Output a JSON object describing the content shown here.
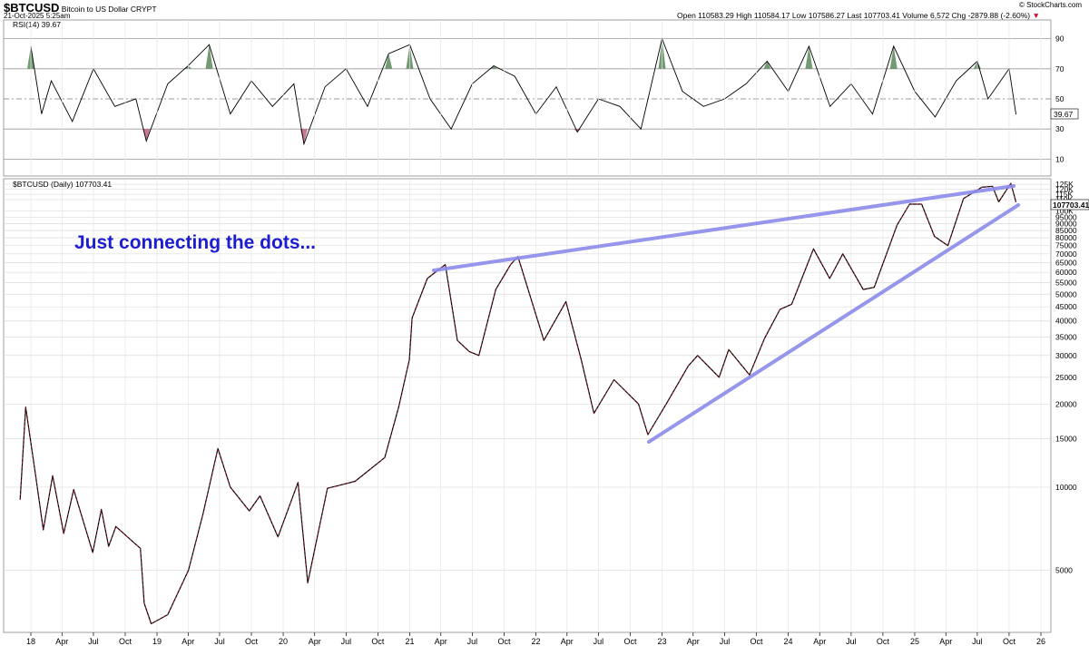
{
  "header": {
    "symbol": "$BTCUSD",
    "name": "Bitcoin to US Dollar",
    "exchange": "CRYPT",
    "datetime": "21-Oct-2025 5:25am",
    "source": "© StockCharts.com",
    "quote": "Open 110583.29  High 110584.17  Low 107586.27  Last 107703.41  Volume 6,572  Chg -2879.88 (-2.60%)",
    "chg_arrow": "▼"
  },
  "rsi_panel": {
    "label": "RSI(14) 39.67",
    "last_label": "39.67",
    "levels": [
      "90",
      "70",
      "50",
      "30",
      "10"
    ]
  },
  "price_panel": {
    "label": "$BTCUSD (Daily) 107703.41",
    "last_label": "107703.41",
    "y_ticks": [
      "125K",
      "120K",
      "115K",
      "110K",
      "100K",
      "95000",
      "90000",
      "85000",
      "80000",
      "75000",
      "70000",
      "65000",
      "60000",
      "55000",
      "50000",
      "45000",
      "40000",
      "35000",
      "30000",
      "25000",
      "20000",
      "15000",
      "10000",
      "5000"
    ]
  },
  "annotation": "Just connecting the dots...",
  "x_ticks": [
    "18",
    "Apr",
    "Jul",
    "Oct",
    "19",
    "Apr",
    "Jul",
    "Oct",
    "20",
    "Apr",
    "Jul",
    "Oct",
    "21",
    "Apr",
    "Jul",
    "Oct",
    "22",
    "Apr",
    "Jul",
    "Oct",
    "23",
    "Apr",
    "Jul",
    "Oct",
    "24",
    "Apr",
    "Jul",
    "Oct",
    "25",
    "Apr",
    "Jul",
    "Oct",
    "26"
  ],
  "colors": {
    "trendline": "#8b8bea",
    "annotation": "#1c1cd1",
    "price_line": "#000000",
    "price_down": "#d0102c",
    "rsi_fill": "#5a8a5a"
  },
  "chart_data": [
    {
      "type": "line",
      "title": "RSI(14) 39.67",
      "series": [
        {
          "name": "RSI(14)",
          "x": [
            "2018-01",
            "2018-02",
            "2018-03",
            "2018-05",
            "2018-07",
            "2018-09",
            "2018-11",
            "2018-12",
            "2019-02",
            "2019-04",
            "2019-06",
            "2019-08",
            "2019-10",
            "2019-12",
            "2020-02",
            "2020-03",
            "2020-05",
            "2020-07",
            "2020-09",
            "2020-11",
            "2021-01",
            "2021-03",
            "2021-05",
            "2021-07",
            "2021-09",
            "2021-11",
            "2022-01",
            "2022-03",
            "2022-05",
            "2022-07",
            "2022-09",
            "2022-11",
            "2023-01",
            "2023-03",
            "2023-05",
            "2023-07",
            "2023-09",
            "2023-11",
            "2024-01",
            "2024-03",
            "2024-05",
            "2024-07",
            "2024-09",
            "2024-11",
            "2025-01",
            "2025-03",
            "2025-05",
            "2025-07",
            "2025-08",
            "2025-10",
            "2025-10-21"
          ],
          "values": [
            85,
            40,
            62,
            35,
            70,
            45,
            50,
            22,
            60,
            72,
            86,
            40,
            62,
            45,
            60,
            20,
            58,
            70,
            45,
            80,
            86,
            50,
            30,
            60,
            72,
            65,
            40,
            58,
            28,
            50,
            45,
            30,
            90,
            55,
            45,
            50,
            60,
            75,
            55,
            85,
            45,
            60,
            40,
            85,
            55,
            38,
            62,
            75,
            50,
            70,
            39.67
          ]
        }
      ],
      "levels": [
        90,
        70,
        50,
        30,
        10
      ],
      "ylim": [
        0,
        100
      ]
    },
    {
      "type": "line",
      "title": "$BTCUSD (Daily) 107703.41",
      "scale": "log",
      "ylim": [
        3000,
        130000
      ],
      "series": [
        {
          "name": "$BTCUSD",
          "x": [
            "2017-12-01",
            "2017-12-17",
            "2018-01-15",
            "2018-02-06",
            "2018-03-05",
            "2018-04-06",
            "2018-05-05",
            "2018-06-29",
            "2018-07-24",
            "2018-08-14",
            "2018-09-04",
            "2018-11-14",
            "2018-11-25",
            "2018-12-15",
            "2019-02-01",
            "2019-04-02",
            "2019-05-14",
            "2019-06-26",
            "2019-08-01",
            "2019-09-25",
            "2019-10-26",
            "2019-12-17",
            "2020-02-13",
            "2020-03-12",
            "2020-05-08",
            "2020-07-27",
            "2020-10-21",
            "2020-11-30",
            "2020-12-31",
            "2021-01-08",
            "2021-02-21",
            "2021-04-14",
            "2021-05-19",
            "2021-06-22",
            "2021-07-20",
            "2021-09-07",
            "2021-10-20",
            "2021-11-10",
            "2022-01-24",
            "2022-03-29",
            "2022-05-12",
            "2022-06-18",
            "2022-08-15",
            "2022-10-25",
            "2022-11-21",
            "2023-01-13",
            "2023-03-18",
            "2023-04-14",
            "2023-06-15",
            "2023-07-13",
            "2023-09-11",
            "2023-10-24",
            "2023-12-08",
            "2024-01-11",
            "2024-03-14",
            "2024-04-30",
            "2024-06-07",
            "2024-08-05",
            "2024-09-06",
            "2024-11-11",
            "2024-12-17",
            "2025-01-21",
            "2025-02-27",
            "2025-04-07",
            "2025-05-22",
            "2025-07-14",
            "2025-08-14",
            "2025-09-01",
            "2025-10-06",
            "2025-10-21"
          ],
          "values": [
            9000,
            19500,
            11000,
            7000,
            11000,
            6800,
            9800,
            5800,
            8300,
            6100,
            7200,
            6000,
            3800,
            3200,
            3450,
            5000,
            8000,
            13800,
            10000,
            8200,
            9300,
            6600,
            10400,
            4500,
            9900,
            10500,
            12800,
            19500,
            29000,
            41000,
            57000,
            64000,
            34000,
            31000,
            30000,
            52000,
            64000,
            68500,
            34000,
            47000,
            29000,
            18500,
            24500,
            20000,
            15500,
            20000,
            27500,
            30000,
            25000,
            31500,
            25500,
            34500,
            44000,
            46000,
            73000,
            57000,
            70000,
            52000,
            53000,
            89000,
            106000,
            106000,
            81000,
            75000,
            111000,
            122000,
            123000,
            108000,
            126000,
            107703.41
          ]
        }
      ]
    }
  ]
}
